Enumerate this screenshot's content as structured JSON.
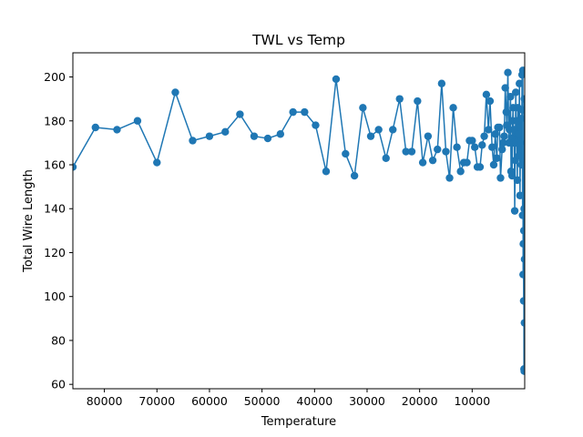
{
  "chart_data": {
    "type": "line",
    "title": "TWL vs Temp",
    "xlabel": "Temperature",
    "ylabel": "Total Wire Length",
    "x_axis_inverted": true,
    "xlim": [
      86000,
      0
    ],
    "ylim": [
      58,
      211
    ],
    "x_ticks": [
      80000,
      70000,
      60000,
      50000,
      40000,
      30000,
      20000,
      10000
    ],
    "x_tick_labels": [
      "80000",
      "70000",
      "60000",
      "50000",
      "40000",
      "30000",
      "20000",
      "10000"
    ],
    "y_ticks": [
      60,
      80,
      100,
      120,
      140,
      160,
      180,
      200
    ],
    "y_tick_labels": [
      "60",
      "80",
      "100",
      "120",
      "140",
      "160",
      "180",
      "200"
    ],
    "grid": false,
    "legend": "none",
    "marker": "circle",
    "series": [
      {
        "color": "#1f77b4",
        "x": [
          86000,
          81700,
          77600,
          73700,
          70000,
          66500,
          63200,
          60000,
          57000,
          54200,
          51500,
          48900,
          46500,
          44100,
          41900,
          39800,
          37800,
          35900,
          34100,
          32400,
          30800,
          29300,
          27800,
          26400,
          25100,
          23800,
          22600,
          21500,
          20400,
          19400,
          18400,
          17500,
          16600,
          15800,
          15000,
          14300,
          13600,
          12900,
          12200,
          11600,
          11000,
          10500,
          10000,
          9500,
          9000,
          8500,
          8100,
          7700,
          7300,
          6900,
          6600,
          6200,
          5900,
          5600,
          5300,
          5100,
          4800,
          4600,
          4300,
          4100,
          3900,
          3700,
          3500,
          3400,
          3200,
          3000,
          2900,
          2700,
          2600,
          2500,
          2400,
          2300,
          2200,
          2100,
          2000,
          1900,
          1800,
          1700,
          1600,
          1500,
          1400,
          1300,
          1200,
          1100,
          1000,
          900,
          800,
          700,
          600,
          500,
          450,
          400,
          350,
          300,
          260,
          220,
          190,
          160,
          130,
          100,
          80,
          60,
          40,
          20
        ],
        "y": [
          159,
          177,
          176,
          180,
          161,
          193,
          171,
          173,
          175,
          183,
          173,
          172,
          174,
          184,
          184,
          178,
          157,
          199,
          165,
          155,
          186,
          173,
          176,
          163,
          176,
          190,
          166,
          166,
          189,
          161,
          173,
          162,
          167,
          197,
          166,
          154,
          186,
          168,
          157,
          161,
          161,
          171,
          171,
          168,
          159,
          159,
          169,
          173,
          192,
          176,
          189,
          168,
          160,
          174,
          163,
          177,
          177,
          154,
          167,
          170,
          173,
          195,
          184,
          178,
          202,
          170,
          176,
          191,
          157,
          172,
          155,
          180,
          186,
          170,
          176,
          139,
          162,
          193,
          170,
          180,
          153,
          186,
          174,
          164,
          197,
          146,
          170,
          181,
          160,
          201,
          185,
          137,
          203,
          110,
          124,
          146,
          98,
          130,
          67,
          140,
          66,
          190,
          88,
          117
        ]
      }
    ]
  }
}
